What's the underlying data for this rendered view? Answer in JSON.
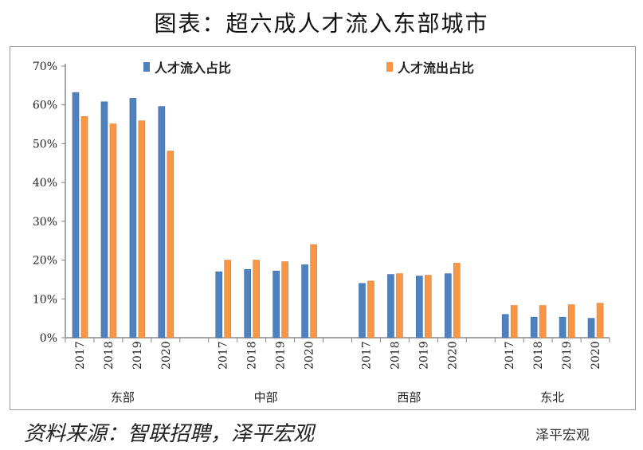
{
  "title": "图表：超六成人才流入东部城市",
  "source": "资料来源：智联招聘，泽平宏观",
  "brand": "泽平宏观",
  "chart_data": {
    "type": "bar",
    "groups": [
      "东部",
      "中部",
      "西部",
      "东北"
    ],
    "years": [
      "2017",
      "2018",
      "2019",
      "2020"
    ],
    "ylim": [
      0,
      70
    ],
    "yticks": [
      "0%",
      "10%",
      "20%",
      "30%",
      "40%",
      "50%",
      "60%",
      "70%"
    ],
    "legend_position": "top",
    "series": [
      {
        "name": "人才流入占比",
        "color": "#4f81bd",
        "values": [
          [
            63.2,
            60.8,
            61.7,
            59.6
          ],
          [
            17.0,
            17.6,
            17.2,
            18.8
          ],
          [
            14.0,
            16.3,
            15.9,
            16.5
          ],
          [
            6.0,
            5.3,
            5.3,
            5.0
          ]
        ]
      },
      {
        "name": "人才流出占比",
        "color": "#f79646",
        "values": [
          [
            57.0,
            55.1,
            55.9,
            48.1
          ],
          [
            20.0,
            20.0,
            19.6,
            24.0
          ],
          [
            14.6,
            16.5,
            16.1,
            19.2
          ],
          [
            8.3,
            8.3,
            8.5,
            8.9
          ]
        ]
      }
    ]
  }
}
